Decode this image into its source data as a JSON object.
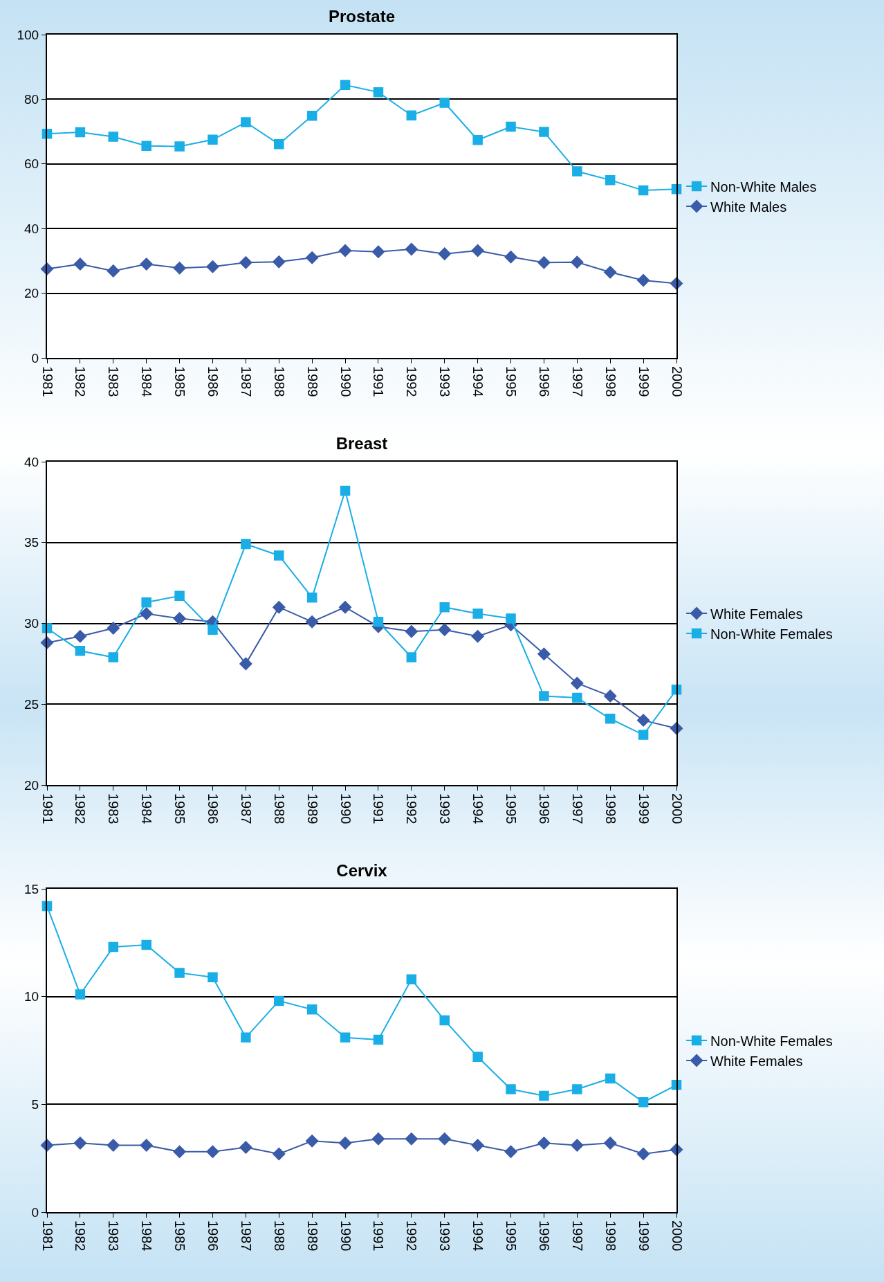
{
  "chart_data": [
    {
      "type": "line",
      "title": "Prostate",
      "categories": [
        "1981",
        "1982",
        "1983",
        "1984",
        "1985",
        "1986",
        "1987",
        "1988",
        "1989",
        "1990",
        "1991",
        "1992",
        "1993",
        "1994",
        "1995",
        "1996",
        "1997",
        "1998",
        "1999",
        "2000"
      ],
      "ylim": [
        0,
        100
      ],
      "yticks": [
        0,
        20,
        40,
        60,
        80,
        100
      ],
      "grid": "y",
      "legend": "right",
      "series": [
        {
          "name": "Non-White Males",
          "color": "#1aaee6",
          "marker": "square",
          "values": [
            69.3,
            69.8,
            68.4,
            65.6,
            65.4,
            67.5,
            72.9,
            66.1,
            74.9,
            84.4,
            82.2,
            75.0,
            78.9,
            67.4,
            71.5,
            69.9,
            57.7,
            55.0,
            51.8,
            52.2
          ]
        },
        {
          "name": "White Males",
          "color": "#3a5ba8",
          "marker": "diamond",
          "values": [
            27.5,
            29.0,
            26.9,
            29.0,
            27.8,
            28.2,
            29.5,
            29.7,
            31.0,
            33.2,
            32.8,
            33.6,
            32.2,
            33.2,
            31.2,
            29.5,
            29.6,
            26.5,
            24.0,
            23.0
          ]
        }
      ]
    },
    {
      "type": "line",
      "title": "Breast",
      "categories": [
        "1981",
        "1982",
        "1983",
        "1984",
        "1985",
        "1986",
        "1987",
        "1988",
        "1989",
        "1990",
        "1991",
        "1992",
        "1993",
        "1994",
        "1995",
        "1996",
        "1997",
        "1998",
        "1999",
        "2000"
      ],
      "ylim": [
        20,
        40
      ],
      "yticks": [
        20,
        25,
        30,
        35,
        40
      ],
      "grid": "y",
      "legend": "right",
      "series": [
        {
          "name": "White Females",
          "color": "#3a5ba8",
          "marker": "diamond",
          "values": [
            28.8,
            29.2,
            29.7,
            30.6,
            30.3,
            30.1,
            27.5,
            31.0,
            30.1,
            31.0,
            29.8,
            29.5,
            29.6,
            29.2,
            29.9,
            28.1,
            26.3,
            25.5,
            24.0,
            23.5
          ]
        },
        {
          "name": "Non-White Females",
          "color": "#1aaee6",
          "marker": "square",
          "values": [
            29.7,
            28.3,
            27.9,
            31.3,
            31.7,
            29.6,
            34.9,
            34.2,
            31.6,
            38.2,
            30.1,
            27.9,
            31.0,
            30.6,
            30.3,
            25.5,
            25.4,
            24.1,
            23.1,
            25.9
          ]
        }
      ]
    },
    {
      "type": "line",
      "title": "Cervix",
      "categories": [
        "1981",
        "1982",
        "1983",
        "1984",
        "1985",
        "1986",
        "1987",
        "1988",
        "1989",
        "1990",
        "1991",
        "1992",
        "1993",
        "1994",
        "1995",
        "1996",
        "1997",
        "1998",
        "1999",
        "2000"
      ],
      "ylim": [
        0,
        15
      ],
      "yticks": [
        0,
        5,
        10,
        15
      ],
      "grid": "y",
      "legend": "right",
      "series": [
        {
          "name": "Non-White Females",
          "color": "#1aaee6",
          "marker": "square",
          "values": [
            14.2,
            10.1,
            12.3,
            12.4,
            11.1,
            10.9,
            8.1,
            9.8,
            9.4,
            8.1,
            8.0,
            10.8,
            8.9,
            7.2,
            5.7,
            5.4,
            5.7,
            6.2,
            5.1,
            5.9
          ]
        },
        {
          "name": "White Females",
          "color": "#3a5ba8",
          "marker": "diamond",
          "values": [
            3.1,
            3.2,
            3.1,
            3.1,
            2.8,
            2.8,
            3.0,
            2.7,
            3.3,
            3.2,
            3.4,
            3.4,
            3.4,
            3.1,
            2.8,
            3.2,
            3.1,
            3.2,
            2.7,
            2.9
          ]
        }
      ]
    }
  ]
}
